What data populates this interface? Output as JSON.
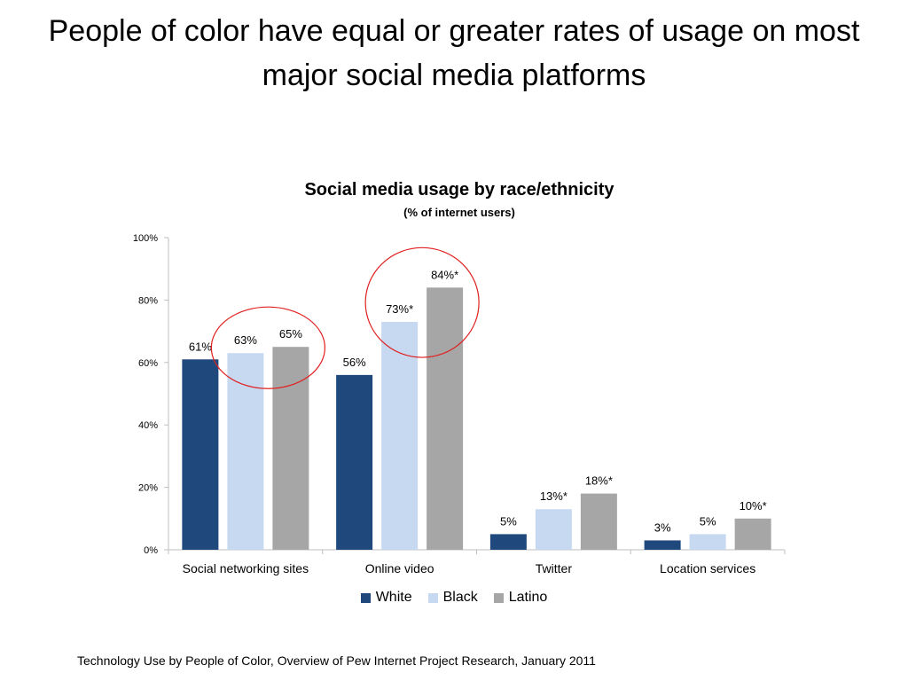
{
  "slide": {
    "title": "People of color have equal or greater rates of usage on most major social media platforms",
    "footer": "Technology Use by People of Color, Overview of Pew Internet Project Research, January 2011"
  },
  "chart_data": {
    "type": "bar",
    "title": "Social media usage by race/ethnicity",
    "subtitle": "(% of internet users)",
    "xlabel": "",
    "ylabel": "",
    "ylim": [
      0,
      100
    ],
    "yticks": [
      "0%",
      "20%",
      "40%",
      "60%",
      "80%",
      "100%"
    ],
    "grid": false,
    "legend_position": "bottom",
    "categories": [
      "Social networking sites",
      "Online video",
      "Twitter",
      "Location services"
    ],
    "series": [
      {
        "name": "White",
        "color": "#1F497D",
        "values": [
          61,
          56,
          5,
          3
        ],
        "labels": [
          "61%",
          "56%",
          "5%",
          "3%"
        ]
      },
      {
        "name": "Black",
        "color": "#C6D9F1",
        "values": [
          63,
          73,
          13,
          5
        ],
        "labels": [
          "63%",
          "73%*",
          "13%*",
          "5%"
        ]
      },
      {
        "name": "Latino",
        "color": "#A6A6A6",
        "values": [
          65,
          84,
          18,
          10
        ],
        "labels": [
          "65%",
          "84%*",
          "18%*",
          "10%*"
        ]
      }
    ],
    "highlight_circles": [
      {
        "category": "Social networking sites",
        "series": [
          "Black",
          "Latino"
        ],
        "color": "#E02020"
      },
      {
        "category": "Online video",
        "series": [
          "Black",
          "Latino"
        ],
        "color": "#E02020"
      }
    ]
  }
}
